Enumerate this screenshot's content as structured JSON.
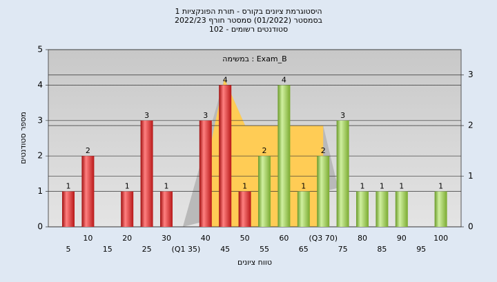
{
  "chart_data": {
    "type": "bar",
    "title": [
      "היסטוגרמת ציונים בקורס - תורת הפונקציות 1",
      "בסמסטר  (01/2022)  סמסטר חורף 2022/23",
      "סטודנטים רשומים - 102"
    ],
    "subtitle": "במשימה : Exam_B",
    "xlabel": "טווח ציונים",
    "ylabel": "מספר סטודנטים",
    "categories": [
      "5",
      "10",
      "15",
      "20",
      "25",
      "30",
      "(Q1 35)",
      "40",
      "45",
      "50",
      "55",
      "60",
      "65",
      "(Q3 70)",
      "75",
      "80",
      "85",
      "90",
      "95",
      "100"
    ],
    "values": [
      1,
      2,
      0,
      1,
      3,
      1,
      0,
      3,
      4,
      1,
      2,
      4,
      1,
      2,
      3,
      1,
      1,
      1,
      0,
      1
    ],
    "colors": [
      "red",
      "red",
      "red",
      "red",
      "red",
      "red",
      "red",
      "red",
      "red",
      "red",
      "green",
      "green",
      "green",
      "green",
      "green",
      "green",
      "green",
      "green",
      "green",
      "green"
    ],
    "ylim": [
      0,
      5
    ],
    "yticks": [
      0,
      1,
      2,
      3,
      4,
      5
    ],
    "y2lim": [
      0,
      3.5
    ],
    "y2ticks": [
      0,
      1,
      2,
      3
    ],
    "grid": true,
    "areas": [
      {
        "type": "area",
        "axis": "y2",
        "color": "#b9b9b9",
        "x": [
          34.2,
          44.8,
          50.1,
          70,
          73.8
        ],
        "values": [
          0,
          2.93,
          2,
          2,
          0.77
        ]
      },
      {
        "type": "area",
        "axis": "y2",
        "color": "#ffcc55",
        "x": [
          41.5,
          41.5,
          44.8,
          50.1,
          70,
          70
        ],
        "values": [
          0,
          1.7,
          2.93,
          2,
          2,
          0
        ]
      }
    ]
  }
}
